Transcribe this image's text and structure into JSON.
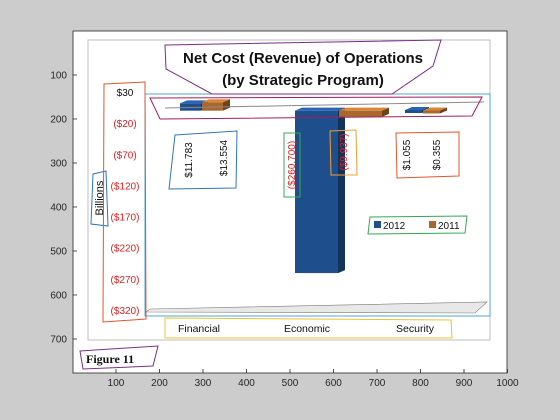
{
  "outer_axes": {
    "x_ticks": [
      "100",
      "200",
      "300",
      "400",
      "500",
      "600",
      "700",
      "800",
      "900",
      "1000"
    ],
    "y_ticks": [
      "100",
      "200",
      "300",
      "400",
      "500",
      "600",
      "700"
    ]
  },
  "chart_data": {
    "type": "bar",
    "title_line1": "Net Cost (Revenue) of Operations",
    "title_line2": "(by Strategic Program)",
    "ylabel": "Billions",
    "categories": [
      "Financial",
      "Economic",
      "Security"
    ],
    "ylim": [
      -320,
      30
    ],
    "y_tick_labels": [
      "$30",
      "($20)",
      "($70)",
      "($120)",
      "($170)",
      "($220)",
      "($270)",
      "($320)"
    ],
    "series": [
      {
        "name": "2012",
        "color": "#1f4e8c",
        "values": [
          11.783,
          -260.7,
          1.055
        ]
      },
      {
        "name": "2011",
        "color": "#a8672c",
        "values": [
          13.554,
          -9.937,
          0.355
        ]
      }
    ],
    "data_labels": [
      {
        "text": "$11.783"
      },
      {
        "text": "$13.554"
      },
      {
        "text": "($260.700)"
      },
      {
        "text": "($9.937)"
      },
      {
        "text": "$1.055"
      },
      {
        "text": "$0.355"
      }
    ],
    "legend_position": "right",
    "figure_label": "Figure 11"
  }
}
